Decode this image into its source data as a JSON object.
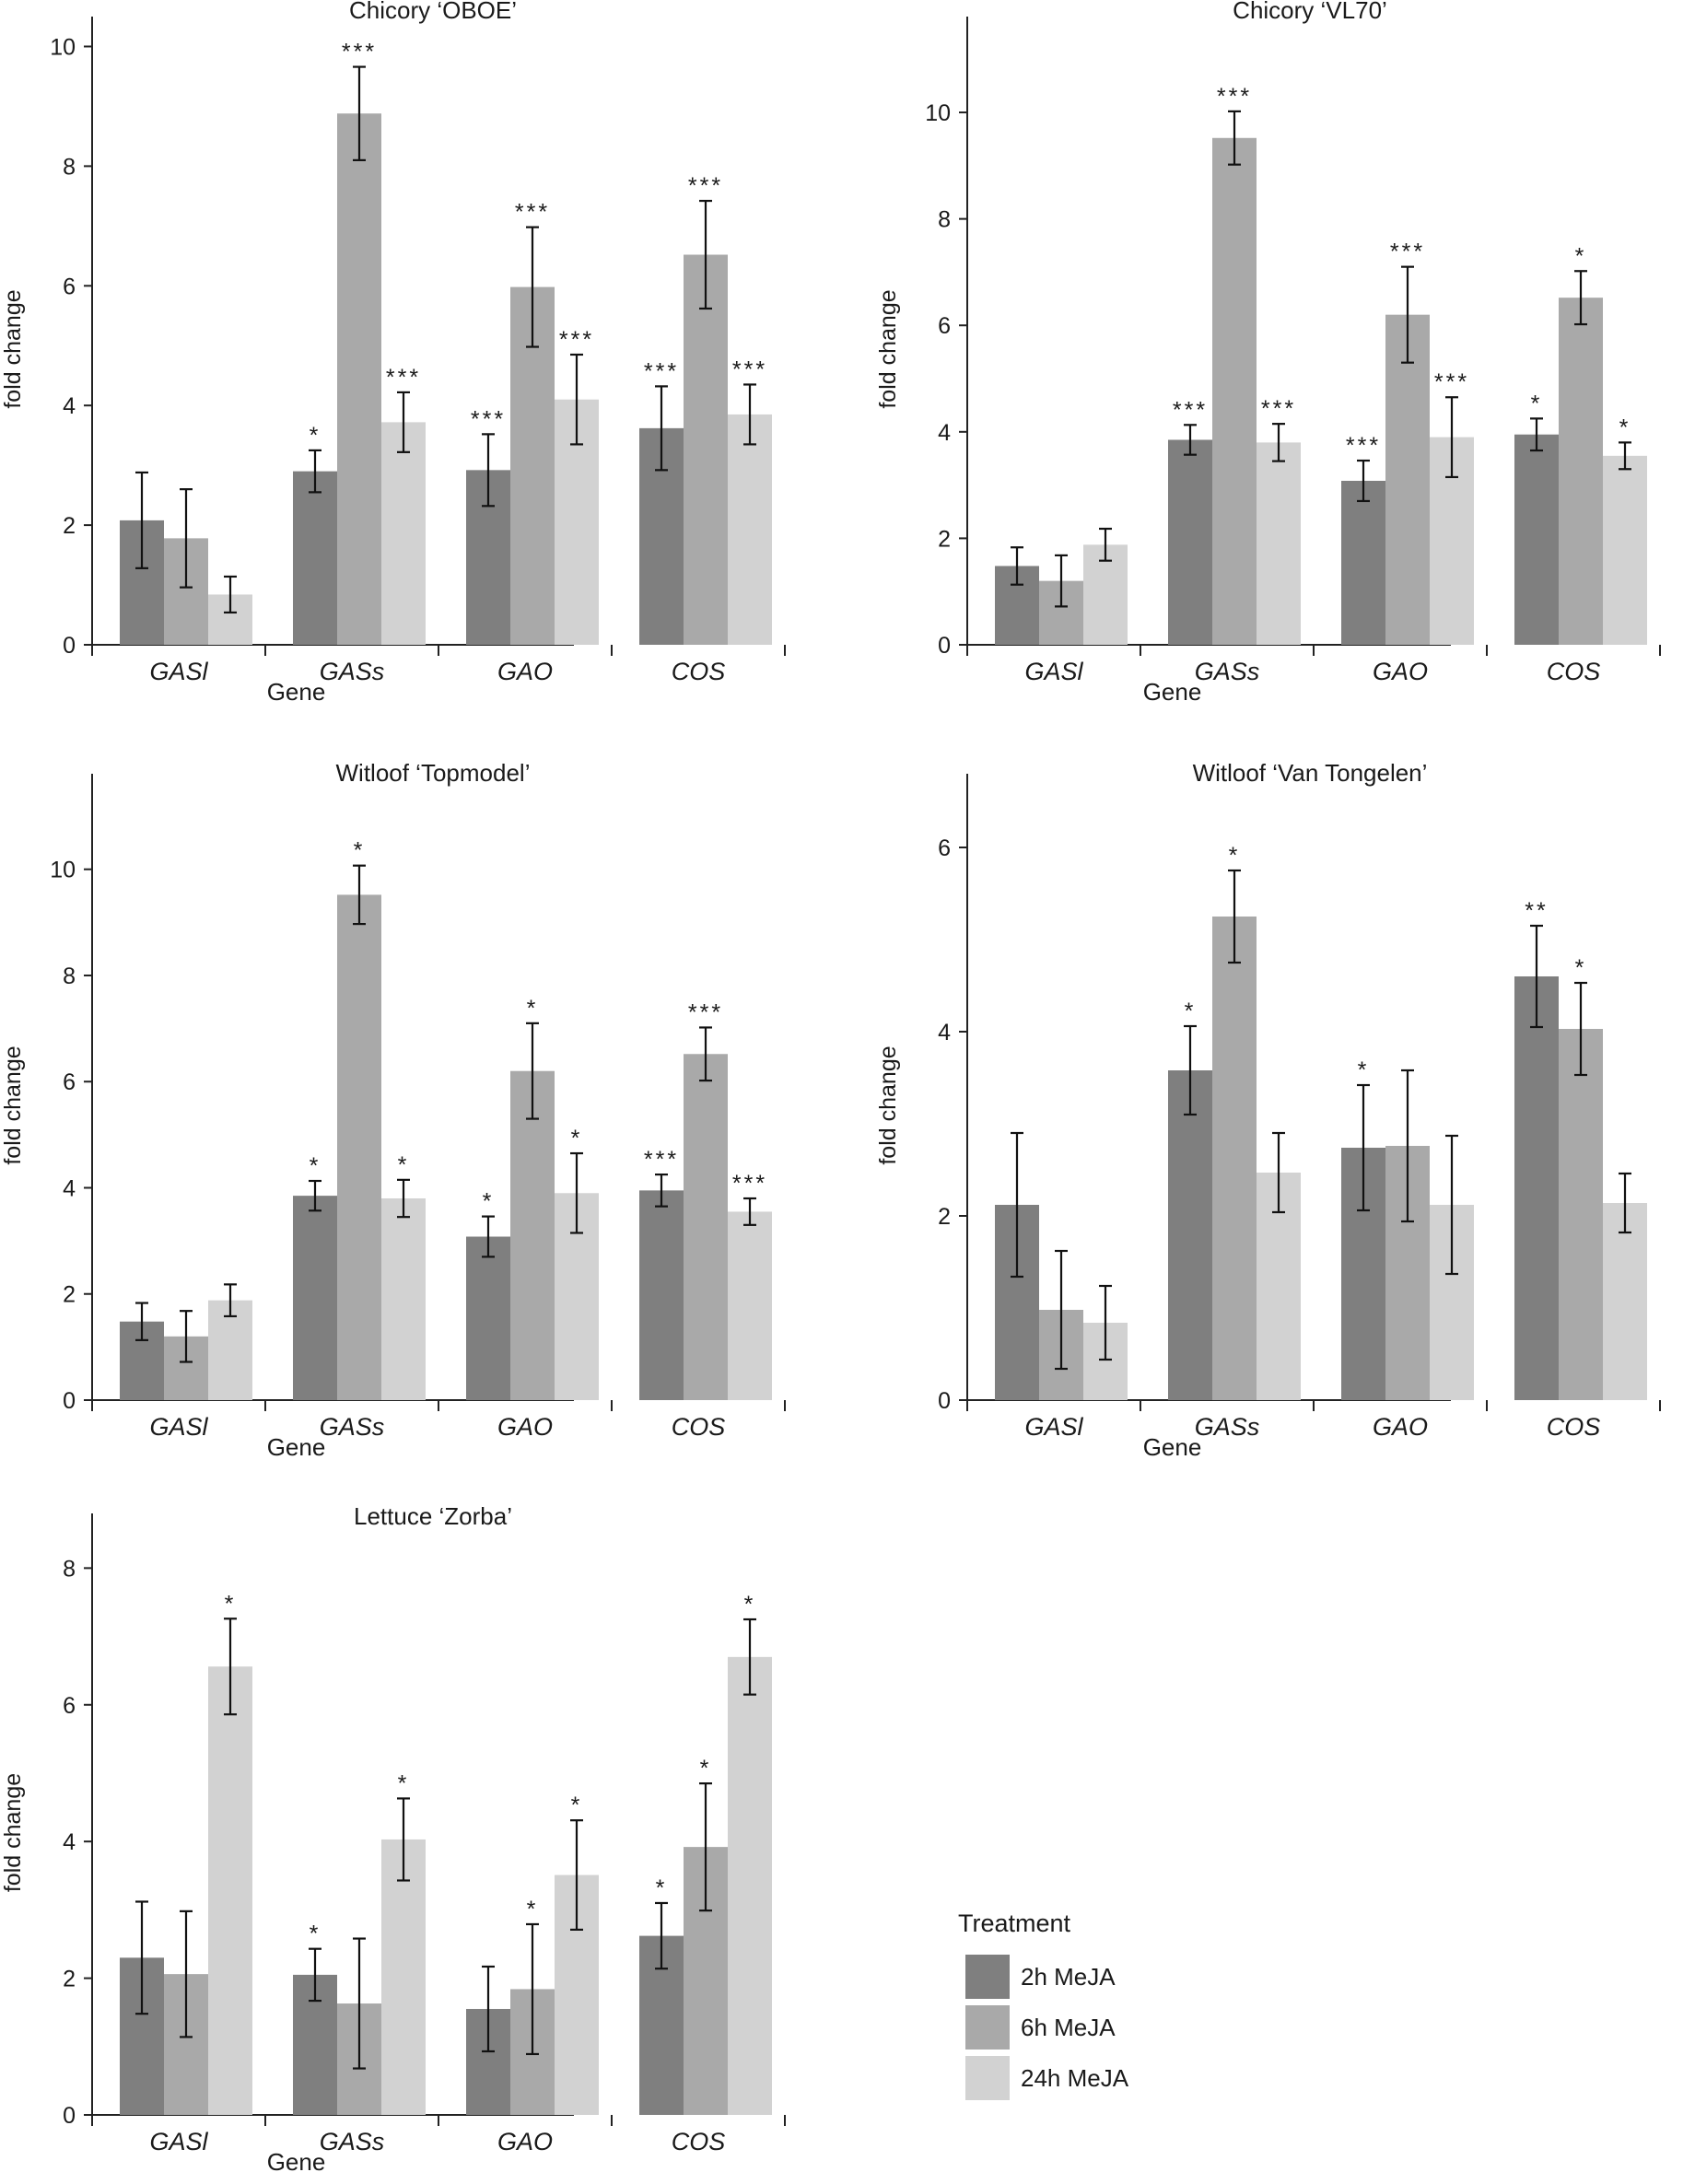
{
  "legend": {
    "title": "Treatment",
    "entries": [
      "2h MeJA",
      "6h MeJA",
      "24h MeJA"
    ],
    "colors": [
      "#7f7f7f",
      "#a9a9a9",
      "#d2d2d2"
    ]
  },
  "chart_data": [
    {
      "type": "bar",
      "title": "Chicory ‘OBOE’",
      "xlabel": "Gene",
      "ylabel": "fold change",
      "ylim": [
        0,
        10.5
      ],
      "yticks": [
        0,
        2,
        4,
        6,
        8,
        10
      ],
      "categories": [
        "GASl",
        "GASs",
        "GAO",
        "COS"
      ],
      "series": [
        {
          "name": "2h MeJA",
          "values": [
            2.08,
            2.9,
            2.92,
            3.62
          ],
          "errors": [
            0.8,
            0.35,
            0.6,
            0.7
          ],
          "sig": [
            "",
            "*",
            "***",
            "***"
          ]
        },
        {
          "name": "6h MeJA",
          "values": [
            1.78,
            8.88,
            5.98,
            6.52
          ],
          "errors": [
            0.82,
            0.78,
            1.0,
            0.9
          ],
          "sig": [
            "",
            "***",
            "***",
            "***"
          ]
        },
        {
          "name": "24h MeJA",
          "values": [
            0.84,
            3.72,
            4.1,
            3.85
          ],
          "errors": [
            0.3,
            0.5,
            0.75,
            0.5
          ],
          "sig": [
            "",
            "***",
            "***",
            "***"
          ]
        }
      ]
    },
    {
      "type": "bar",
      "title": "Chicory ‘VL70’",
      "xlabel": "Gene",
      "ylabel": "fold change",
      "ylim": [
        0,
        11.8
      ],
      "yticks": [
        0,
        2,
        4,
        6,
        8,
        10
      ],
      "categories": [
        "GASl",
        "GASs",
        "GAO",
        "COS"
      ],
      "series": [
        {
          "name": "2h MeJA",
          "values": [
            1.48,
            3.85,
            3.08,
            3.95
          ],
          "errors": [
            0.35,
            0.28,
            0.38,
            0.3
          ],
          "sig": [
            "",
            "***",
            "***",
            "*"
          ]
        },
        {
          "name": "6h MeJA",
          "values": [
            1.2,
            9.52,
            6.2,
            6.52
          ],
          "errors": [
            0.48,
            0.5,
            0.9,
            0.5
          ],
          "sig": [
            "",
            "***",
            "***",
            "*"
          ]
        },
        {
          "name": "24h MeJA",
          "values": [
            1.88,
            3.8,
            3.9,
            3.55
          ],
          "errors": [
            0.3,
            0.35,
            0.75,
            0.25
          ],
          "sig": [
            "",
            "***",
            "***",
            "*"
          ]
        }
      ]
    },
    {
      "type": "bar",
      "title": "Witloof ‘Topmodel’",
      "xlabel": "Gene",
      "ylabel": "fold change",
      "ylim": [
        0,
        11.8
      ],
      "yticks": [
        0,
        2,
        4,
        6,
        8,
        10
      ],
      "categories": [
        "GASl",
        "GASs",
        "GAO",
        "COS"
      ],
      "series": [
        {
          "name": "2h MeJA",
          "values": [
            1.48,
            3.85,
            3.08,
            3.95
          ],
          "errors": [
            0.35,
            0.28,
            0.38,
            0.3
          ],
          "sig": [
            "",
            "*",
            "*",
            "***"
          ]
        },
        {
          "name": "6h MeJA",
          "values": [
            1.2,
            9.52,
            6.2,
            6.52
          ],
          "errors": [
            0.48,
            0.55,
            0.9,
            0.5
          ],
          "sig": [
            "",
            "*",
            "*",
            "***"
          ]
        },
        {
          "name": "24h MeJA",
          "values": [
            1.88,
            3.8,
            3.9,
            3.55
          ],
          "errors": [
            0.3,
            0.35,
            0.75,
            0.25
          ],
          "sig": [
            "",
            "*",
            "*",
            "***"
          ]
        }
      ]
    },
    {
      "type": "bar",
      "title": "Witloof ‘Van Tongelen’",
      "xlabel": "Gene",
      "ylabel": "fold change",
      "ylim": [
        0,
        6.8
      ],
      "yticks": [
        0,
        2,
        4,
        6
      ],
      "categories": [
        "GASl",
        "GASs",
        "GAO",
        "COS"
      ],
      "series": [
        {
          "name": "2h MeJA",
          "values": [
            2.12,
            3.58,
            2.74,
            4.6
          ],
          "errors": [
            0.78,
            0.48,
            0.68,
            0.55
          ],
          "sig": [
            "",
            "*",
            "*",
            "**"
          ]
        },
        {
          "name": "6h MeJA",
          "values": [
            0.98,
            5.25,
            2.76,
            4.03
          ],
          "errors": [
            0.64,
            0.5,
            0.82,
            0.5
          ],
          "sig": [
            "",
            "*",
            "",
            "*"
          ]
        },
        {
          "name": "24h MeJA",
          "values": [
            0.84,
            2.47,
            2.12,
            2.14
          ],
          "errors": [
            0.4,
            0.43,
            0.75,
            0.32
          ],
          "sig": [
            "",
            "",
            "",
            ""
          ]
        }
      ]
    },
    {
      "type": "bar",
      "title": "Lettuce ‘Zorba’",
      "xlabel": "Gene",
      "ylabel": "fold change",
      "ylim": [
        0,
        8.8
      ],
      "yticks": [
        0,
        2,
        4,
        6,
        8
      ],
      "categories": [
        "GASl",
        "GASs",
        "GAO",
        "COS"
      ],
      "series": [
        {
          "name": "2h MeJA",
          "values": [
            2.3,
            2.05,
            1.55,
            2.62
          ],
          "errors": [
            0.82,
            0.38,
            0.62,
            0.48
          ],
          "sig": [
            "",
            "*",
            "",
            "*"
          ]
        },
        {
          "name": "6h MeJA",
          "values": [
            2.06,
            1.63,
            1.84,
            3.92
          ],
          "errors": [
            0.92,
            0.95,
            0.95,
            0.93
          ],
          "sig": [
            "",
            "",
            "*",
            "*"
          ]
        },
        {
          "name": "24h MeJA",
          "values": [
            6.56,
            4.03,
            3.51,
            6.7
          ],
          "errors": [
            0.7,
            0.6,
            0.8,
            0.55
          ],
          "sig": [
            "*",
            "*",
            "*",
            "*"
          ]
        }
      ]
    }
  ]
}
